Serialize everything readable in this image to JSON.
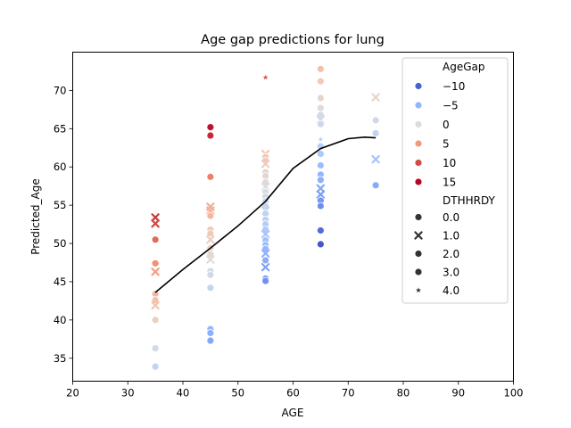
{
  "chart_data": {
    "type": "scatter",
    "title": "Age gap predictions for lung",
    "xlabel": "AGE",
    "ylabel": "Predicted_Age",
    "xlim": [
      20,
      100
    ],
    "ylim": [
      32,
      75
    ],
    "xticks": [
      "20",
      "30",
      "40",
      "50",
      "60",
      "70",
      "80",
      "90",
      "100"
    ],
    "yticks": [
      "35",
      "40",
      "45",
      "50",
      "55",
      "60",
      "65",
      "70"
    ],
    "grid": false,
    "legend_position": "top-right",
    "legend": {
      "hue_title": "AgeGap",
      "hue_entries": [
        {
          "label": "−10",
          "color": "#4961d2"
        },
        {
          "label": "−5",
          "color": "#93b5fe"
        },
        {
          "label": "0",
          "color": "#dddcdc"
        },
        {
          "label": "5",
          "color": "#f4987a"
        },
        {
          "label": "10",
          "color": "#d24b40"
        },
        {
          "label": "15",
          "color": "#b40426"
        }
      ],
      "style_title": "DTHHRDY",
      "style_entries": [
        {
          "label": "0.0",
          "marker": "circle"
        },
        {
          "label": "1.0",
          "marker": "x"
        },
        {
          "label": "2.0",
          "marker": "circle"
        },
        {
          "label": "3.0",
          "marker": "circle"
        },
        {
          "label": "4.0",
          "marker": "star"
        }
      ]
    },
    "points": [
      {
        "x": 35,
        "y": 53.4,
        "gap": 18.4,
        "m": "x"
      },
      {
        "x": 35,
        "y": 52.6,
        "gap": 17.6,
        "m": "x"
      },
      {
        "x": 35,
        "y": 50.5,
        "gap": 15.5,
        "m": "circle"
      },
      {
        "x": 35,
        "y": 47.4,
        "gap": 12.4,
        "m": "circle"
      },
      {
        "x": 35,
        "y": 46.3,
        "gap": 11.3,
        "m": "x"
      },
      {
        "x": 35,
        "y": 43.4,
        "gap": 8.4,
        "m": "circle"
      },
      {
        "x": 35,
        "y": 42.6,
        "gap": 7.6,
        "m": "circle"
      },
      {
        "x": 35,
        "y": 41.9,
        "gap": 6.9,
        "m": "x"
      },
      {
        "x": 35,
        "y": 40.0,
        "gap": 5.0,
        "m": "circle"
      },
      {
        "x": 35,
        "y": 36.3,
        "gap": 1.3,
        "m": "circle"
      },
      {
        "x": 35,
        "y": 33.9,
        "gap": -1.1,
        "m": "circle"
      },
      {
        "x": 45,
        "y": 65.2,
        "gap": 20.2,
        "m": "circle"
      },
      {
        "x": 45,
        "y": 64.1,
        "gap": 19.1,
        "m": "circle"
      },
      {
        "x": 45,
        "y": 58.7,
        "gap": 13.7,
        "m": "circle"
      },
      {
        "x": 45,
        "y": 54.8,
        "gap": 9.8,
        "m": "x"
      },
      {
        "x": 45,
        "y": 54.3,
        "gap": 9.3,
        "m": "x"
      },
      {
        "x": 45,
        "y": 53.6,
        "gap": 8.6,
        "m": "circle"
      },
      {
        "x": 45,
        "y": 51.8,
        "gap": 6.8,
        "m": "circle"
      },
      {
        "x": 45,
        "y": 51.3,
        "gap": 6.3,
        "m": "circle"
      },
      {
        "x": 45,
        "y": 50.5,
        "gap": 5.5,
        "m": "x"
      },
      {
        "x": 45,
        "y": 49.4,
        "gap": 4.4,
        "m": "circle"
      },
      {
        "x": 45,
        "y": 48.6,
        "gap": 3.6,
        "m": "circle"
      },
      {
        "x": 45,
        "y": 47.9,
        "gap": 2.9,
        "m": "x"
      },
      {
        "x": 45,
        "y": 46.4,
        "gap": 1.4,
        "m": "circle"
      },
      {
        "x": 45,
        "y": 45.9,
        "gap": 0.9,
        "m": "circle"
      },
      {
        "x": 45,
        "y": 44.2,
        "gap": -0.8,
        "m": "circle"
      },
      {
        "x": 45,
        "y": 38.8,
        "gap": -6.2,
        "m": "circle"
      },
      {
        "x": 45,
        "y": 38.3,
        "gap": -6.7,
        "m": "circle"
      },
      {
        "x": 45,
        "y": 37.3,
        "gap": -7.7,
        "m": "circle"
      },
      {
        "x": 55,
        "y": 71.7,
        "gap": 16.7,
        "m": "star"
      },
      {
        "x": 55,
        "y": 61.7,
        "gap": 6.7,
        "m": "x"
      },
      {
        "x": 55,
        "y": 61.3,
        "gap": 6.3,
        "m": "circle"
      },
      {
        "x": 55,
        "y": 60.8,
        "gap": 5.8,
        "m": "circle"
      },
      {
        "x": 55,
        "y": 60.4,
        "gap": 5.4,
        "m": "x"
      },
      {
        "x": 55,
        "y": 59.3,
        "gap": 4.3,
        "m": "circle"
      },
      {
        "x": 55,
        "y": 58.8,
        "gap": 3.8,
        "m": "circle"
      },
      {
        "x": 55,
        "y": 58.0,
        "gap": 3.0,
        "m": "circle"
      },
      {
        "x": 55,
        "y": 57.4,
        "gap": 2.4,
        "m": "x"
      },
      {
        "x": 55,
        "y": 56.7,
        "gap": 1.7,
        "m": "circle"
      },
      {
        "x": 55,
        "y": 56.1,
        "gap": 1.1,
        "m": "circle"
      },
      {
        "x": 55,
        "y": 55.5,
        "gap": 0.5,
        "m": "circle"
      },
      {
        "x": 55,
        "y": 54.9,
        "gap": -0.1,
        "m": "circle"
      },
      {
        "x": 55,
        "y": 54.3,
        "gap": -0.7,
        "m": "x"
      },
      {
        "x": 55,
        "y": 53.9,
        "gap": -1.1,
        "m": "circle"
      },
      {
        "x": 55,
        "y": 53.1,
        "gap": -1.9,
        "m": "circle"
      },
      {
        "x": 55,
        "y": 52.5,
        "gap": -2.5,
        "m": "circle"
      },
      {
        "x": 55,
        "y": 51.8,
        "gap": -3.2,
        "m": "circle"
      },
      {
        "x": 55,
        "y": 51.2,
        "gap": -3.8,
        "m": "x"
      },
      {
        "x": 55,
        "y": 50.4,
        "gap": -4.6,
        "m": "circle"
      },
      {
        "x": 55,
        "y": 49.8,
        "gap": -5.2,
        "m": "circle"
      },
      {
        "x": 55,
        "y": 49.3,
        "gap": -5.7,
        "m": "circle"
      },
      {
        "x": 55,
        "y": 48.7,
        "gap": -6.3,
        "m": "x"
      },
      {
        "x": 55,
        "y": 47.8,
        "gap": -7.2,
        "m": "circle"
      },
      {
        "x": 55,
        "y": 46.9,
        "gap": -8.1,
        "m": "x"
      },
      {
        "x": 55,
        "y": 45.4,
        "gap": -9.6,
        "m": "circle"
      },
      {
        "x": 55,
        "y": 45.1,
        "gap": -9.9,
        "m": "circle"
      },
      {
        "x": 65,
        "y": 72.8,
        "gap": 7.8,
        "m": "circle"
      },
      {
        "x": 65,
        "y": 71.2,
        "gap": 6.2,
        "m": "circle"
      },
      {
        "x": 65,
        "y": 69.0,
        "gap": 4.0,
        "m": "circle"
      },
      {
        "x": 65,
        "y": 67.7,
        "gap": 2.7,
        "m": "circle"
      },
      {
        "x": 65,
        "y": 66.8,
        "gap": 1.8,
        "m": "circle"
      },
      {
        "x": 65,
        "y": 66.2,
        "gap": 1.2,
        "m": "x"
      },
      {
        "x": 65,
        "y": 65.6,
        "gap": 0.6,
        "m": "circle"
      },
      {
        "x": 65,
        "y": 63.6,
        "gap": -1.4,
        "m": "star"
      },
      {
        "x": 65,
        "y": 62.7,
        "gap": -2.3,
        "m": "circle"
      },
      {
        "x": 65,
        "y": 61.7,
        "gap": -3.3,
        "m": "circle"
      },
      {
        "x": 65,
        "y": 60.2,
        "gap": -4.8,
        "m": "circle"
      },
      {
        "x": 65,
        "y": 59.0,
        "gap": -6.0,
        "m": "circle"
      },
      {
        "x": 65,
        "y": 58.3,
        "gap": -6.7,
        "m": "circle"
      },
      {
        "x": 65,
        "y": 57.2,
        "gap": -7.8,
        "m": "x"
      },
      {
        "x": 65,
        "y": 56.4,
        "gap": -8.6,
        "m": "x"
      },
      {
        "x": 65,
        "y": 55.6,
        "gap": -9.4,
        "m": "circle"
      },
      {
        "x": 65,
        "y": 54.9,
        "gap": -10.1,
        "m": "circle"
      },
      {
        "x": 65,
        "y": 51.7,
        "gap": -13.3,
        "m": "circle"
      },
      {
        "x": 65,
        "y": 49.9,
        "gap": -15.1,
        "m": "circle"
      },
      {
        "x": 75,
        "y": 69.1,
        "gap": 4.1,
        "m": "x"
      },
      {
        "x": 75,
        "y": 66.1,
        "gap": 1.1,
        "m": "circle"
      },
      {
        "x": 75,
        "y": 64.4,
        "gap": -0.6,
        "m": "circle"
      },
      {
        "x": 75,
        "y": 61.0,
        "gap": -4.0,
        "m": "x"
      },
      {
        "x": 75,
        "y": 57.6,
        "gap": -7.4,
        "m": "circle"
      }
    ],
    "trend_line": {
      "color": "#000000",
      "x": [
        35,
        40,
        45,
        50,
        55,
        60,
        65,
        70,
        73,
        75
      ],
      "y": [
        43.6,
        46.6,
        49.4,
        52.3,
        55.5,
        59.8,
        62.4,
        63.7,
        63.9,
        63.8
      ]
    }
  }
}
